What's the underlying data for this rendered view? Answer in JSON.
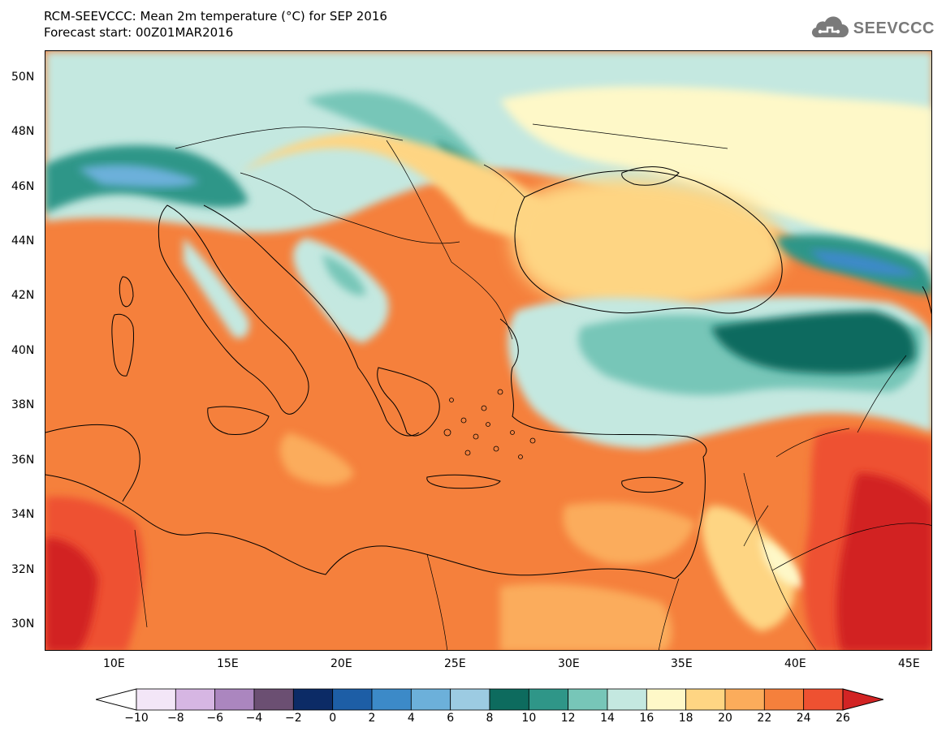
{
  "header": {
    "title": "RCM-SEEVCCC: Mean 2m temperature (°C) for SEP 2016",
    "subtitle": "Forecast start: 00Z01MAR2016"
  },
  "logo": {
    "text": "SEEVCCC",
    "icon": "cloud-icon",
    "color": "#7a7a7a"
  },
  "map": {
    "lat_ticks": [
      "50N",
      "48N",
      "46N",
      "44N",
      "42N",
      "40N",
      "38N",
      "36N",
      "34N",
      "32N",
      "30N"
    ],
    "lon_ticks": [
      "10E",
      "15E",
      "20E",
      "25E",
      "30E",
      "35E",
      "40E",
      "45E"
    ],
    "lat_range": [
      29,
      51
    ],
    "lon_range": [
      7,
      46
    ]
  },
  "legend": {
    "labels": [
      "−10",
      "−8",
      "−6",
      "−4",
      "−2",
      "0",
      "2",
      "4",
      "6",
      "8",
      "10",
      "12",
      "14",
      "16",
      "18",
      "20",
      "22",
      "24",
      "26"
    ],
    "colors": [
      "#ffffff",
      "#f3e6f7",
      "#d6b6e3",
      "#ab86bf",
      "#6b4f72",
      "#0c2b66",
      "#1d5ea6",
      "#3c8ac8",
      "#6cb0da",
      "#9ccbe2",
      "#0d6b5e",
      "#2f9688",
      "#77c6b8",
      "#c4e8e0",
      "#fef8c8",
      "#fed583",
      "#fbac5b",
      "#f5803c",
      "#ee5131",
      "#d22424"
    ]
  }
}
